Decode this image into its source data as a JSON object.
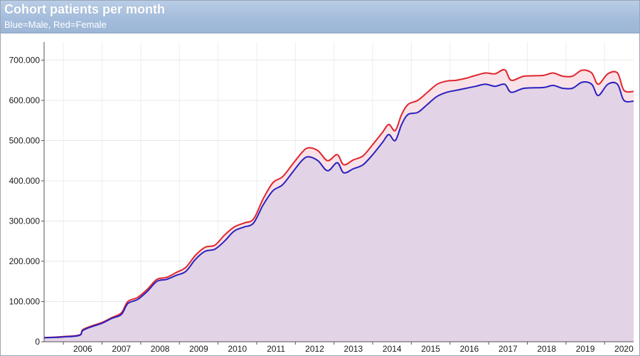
{
  "chart_data": {
    "type": "area",
    "title": "Cohort patients per month",
    "subtitle": "Blue=Male, Red=Female",
    "xlabel": "",
    "ylabel": "",
    "x_ticks": [
      "2006",
      "2007",
      "2008",
      "2009",
      "2010",
      "2011",
      "2012",
      "2013",
      "2014",
      "2015",
      "2016",
      "2017",
      "2018",
      "2019",
      "2020"
    ],
    "y_ticks": [
      "0",
      "100.000",
      "200.000",
      "300.000",
      "400.000",
      "500.000",
      "600.000",
      "700.000"
    ],
    "ylim": [
      0,
      745000
    ],
    "xlim": [
      "2005-07",
      "2020-10"
    ],
    "grid": true,
    "colors": {
      "male": "#2a20c0",
      "female": "#e0262e",
      "fill": "#e3d3e6",
      "band": "#f7dfe4"
    },
    "series": [
      {
        "name": "Male",
        "points": [
          [
            "2005-07",
            10000
          ],
          [
            "2006-01",
            12000
          ],
          [
            "2006-06",
            16000
          ],
          [
            "2006-07",
            28000
          ],
          [
            "2006-10",
            38000
          ],
          [
            "2007-01",
            46000
          ],
          [
            "2007-04",
            58000
          ],
          [
            "2007-07",
            68000
          ],
          [
            "2007-09",
            95000
          ],
          [
            "2007-12",
            105000
          ],
          [
            "2008-03",
            125000
          ],
          [
            "2008-06",
            150000
          ],
          [
            "2008-09",
            155000
          ],
          [
            "2008-12",
            165000
          ],
          [
            "2009-03",
            175000
          ],
          [
            "2009-06",
            205000
          ],
          [
            "2009-09",
            225000
          ],
          [
            "2009-12",
            230000
          ],
          [
            "2010-03",
            250000
          ],
          [
            "2010-06",
            275000
          ],
          [
            "2010-09",
            285000
          ],
          [
            "2010-12",
            295000
          ],
          [
            "2011-03",
            340000
          ],
          [
            "2011-06",
            375000
          ],
          [
            "2011-09",
            390000
          ],
          [
            "2011-12",
            420000
          ],
          [
            "2012-03",
            450000
          ],
          [
            "2012-05",
            460000
          ],
          [
            "2012-08",
            450000
          ],
          [
            "2012-11",
            425000
          ],
          [
            "2013-02",
            445000
          ],
          [
            "2013-04",
            420000
          ],
          [
            "2013-07",
            430000
          ],
          [
            "2013-10",
            440000
          ],
          [
            "2014-01",
            465000
          ],
          [
            "2014-04",
            495000
          ],
          [
            "2014-06",
            515000
          ],
          [
            "2014-08",
            500000
          ],
          [
            "2014-10",
            540000
          ],
          [
            "2014-12",
            565000
          ],
          [
            "2015-03",
            570000
          ],
          [
            "2015-06",
            590000
          ],
          [
            "2015-09",
            610000
          ],
          [
            "2015-12",
            620000
          ],
          [
            "2016-03",
            625000
          ],
          [
            "2016-06",
            630000
          ],
          [
            "2016-09",
            635000
          ],
          [
            "2016-12",
            640000
          ],
          [
            "2017-03",
            635000
          ],
          [
            "2017-06",
            640000
          ],
          [
            "2017-08",
            620000
          ],
          [
            "2017-12",
            630000
          ],
          [
            "2018-06",
            632000
          ],
          [
            "2018-09",
            637000
          ],
          [
            "2018-12",
            630000
          ],
          [
            "2019-03",
            630000
          ],
          [
            "2019-06",
            645000
          ],
          [
            "2019-09",
            640000
          ],
          [
            "2019-11",
            612000
          ],
          [
            "2020-02",
            640000
          ],
          [
            "2020-05",
            640000
          ],
          [
            "2020-07",
            600000
          ],
          [
            "2020-10",
            598000
          ]
        ]
      },
      {
        "name": "Female",
        "points": [
          [
            "2005-07",
            10000
          ],
          [
            "2006-01",
            13000
          ],
          [
            "2006-06",
            17000
          ],
          [
            "2006-07",
            30000
          ],
          [
            "2006-10",
            40000
          ],
          [
            "2007-01",
            48000
          ],
          [
            "2007-04",
            60000
          ],
          [
            "2007-07",
            72000
          ],
          [
            "2007-09",
            100000
          ],
          [
            "2007-12",
            110000
          ],
          [
            "2008-03",
            130000
          ],
          [
            "2008-06",
            155000
          ],
          [
            "2008-09",
            160000
          ],
          [
            "2008-12",
            172000
          ],
          [
            "2009-03",
            185000
          ],
          [
            "2009-06",
            215000
          ],
          [
            "2009-09",
            235000
          ],
          [
            "2009-12",
            240000
          ],
          [
            "2010-03",
            265000
          ],
          [
            "2010-06",
            285000
          ],
          [
            "2010-09",
            295000
          ],
          [
            "2010-12",
            305000
          ],
          [
            "2011-03",
            355000
          ],
          [
            "2011-06",
            395000
          ],
          [
            "2011-09",
            410000
          ],
          [
            "2011-12",
            440000
          ],
          [
            "2012-03",
            470000
          ],
          [
            "2012-05",
            482000
          ],
          [
            "2012-08",
            475000
          ],
          [
            "2012-11",
            450000
          ],
          [
            "2013-02",
            465000
          ],
          [
            "2013-04",
            440000
          ],
          [
            "2013-07",
            452000
          ],
          [
            "2013-10",
            462000
          ],
          [
            "2014-01",
            490000
          ],
          [
            "2014-04",
            520000
          ],
          [
            "2014-06",
            540000
          ],
          [
            "2014-08",
            525000
          ],
          [
            "2014-10",
            565000
          ],
          [
            "2014-12",
            590000
          ],
          [
            "2015-03",
            600000
          ],
          [
            "2015-06",
            620000
          ],
          [
            "2015-09",
            640000
          ],
          [
            "2015-12",
            648000
          ],
          [
            "2016-03",
            650000
          ],
          [
            "2016-06",
            655000
          ],
          [
            "2016-09",
            662000
          ],
          [
            "2016-12",
            668000
          ],
          [
            "2017-03",
            666000
          ],
          [
            "2017-06",
            676000
          ],
          [
            "2017-08",
            650000
          ],
          [
            "2017-12",
            660000
          ],
          [
            "2018-06",
            662000
          ],
          [
            "2018-09",
            668000
          ],
          [
            "2018-12",
            660000
          ],
          [
            "2019-03",
            660000
          ],
          [
            "2019-06",
            675000
          ],
          [
            "2019-09",
            668000
          ],
          [
            "2019-11",
            640000
          ],
          [
            "2020-02",
            666000
          ],
          [
            "2020-05",
            668000
          ],
          [
            "2020-07",
            625000
          ],
          [
            "2020-10",
            622000
          ]
        ]
      }
    ]
  }
}
